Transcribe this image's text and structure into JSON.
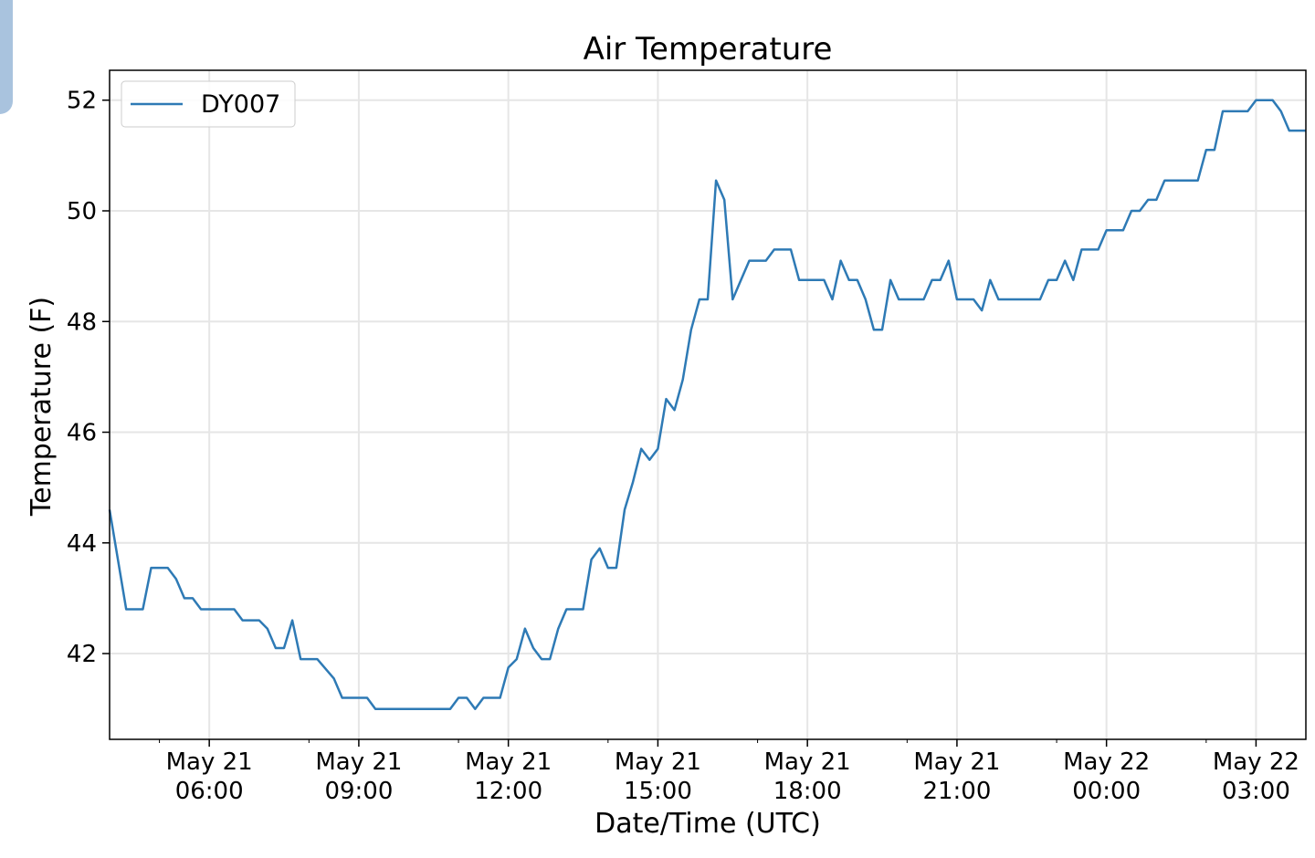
{
  "chart_data": {
    "type": "line",
    "title": "Air Temperature",
    "xlabel": "Date/Time (UTC)",
    "ylabel": "Temperature (F)",
    "x_minutes_range": [
      240,
      1680
    ],
    "ylim": [
      40.45,
      52.54
    ],
    "grid": true,
    "legend_placement": "top-left",
    "y_ticks": [
      42,
      44,
      46,
      48,
      50,
      52
    ],
    "x_ticks": [
      {
        "minutes": 360,
        "line1": "May 21",
        "line2": "06:00"
      },
      {
        "minutes": 540,
        "line1": "May 21",
        "line2": "09:00"
      },
      {
        "minutes": 720,
        "line1": "May 21",
        "line2": "12:00"
      },
      {
        "minutes": 900,
        "line1": "May 21",
        "line2": "15:00"
      },
      {
        "minutes": 1080,
        "line1": "May 21",
        "line2": "18:00"
      },
      {
        "minutes": 1260,
        "line1": "May 21",
        "line2": "21:00"
      },
      {
        "minutes": 1440,
        "line1": "May 22",
        "line2": "00:00"
      },
      {
        "minutes": 1620,
        "line1": "May 22",
        "line2": "03:00"
      }
    ],
    "x_minor_ticks": [
      300,
      480,
      660,
      840,
      1020,
      1200,
      1380,
      1560
    ],
    "series": [
      {
        "name": "DY007",
        "color": "#2e7ab5",
        "x": [
          240,
          260,
          280,
          290,
          310,
          320,
          330,
          340,
          350,
          390,
          400,
          420,
          430,
          440,
          450,
          460,
          470,
          490,
          510,
          520,
          550,
          560,
          650,
          660,
          670,
          680,
          690,
          710,
          720,
          730,
          740,
          750,
          760,
          770,
          780,
          790,
          810,
          820,
          830,
          840,
          850,
          860,
          870,
          880,
          890,
          900,
          910,
          920,
          930,
          940,
          950,
          960,
          970,
          980,
          990,
          1000,
          1010,
          1030,
          1040,
          1060,
          1070,
          1100,
          1110,
          1120,
          1130,
          1140,
          1150,
          1160,
          1170,
          1180,
          1190,
          1220,
          1230,
          1240,
          1250,
          1260,
          1280,
          1290,
          1300,
          1310,
          1360,
          1370,
          1380,
          1390,
          1400,
          1410,
          1430,
          1440,
          1460,
          1470,
          1480,
          1490,
          1500,
          1510,
          1550,
          1560,
          1570,
          1580,
          1610,
          1620,
          1640,
          1650,
          1660,
          1680
        ],
        "values": [
          44.6,
          42.8,
          42.8,
          43.55,
          43.55,
          43.35,
          43.0,
          43.0,
          42.8,
          42.8,
          42.6,
          42.6,
          42.45,
          42.1,
          42.1,
          42.6,
          41.9,
          41.9,
          41.55,
          41.2,
          41.2,
          41.0,
          41.0,
          41.2,
          41.2,
          41.0,
          41.2,
          41.2,
          41.75,
          41.9,
          42.45,
          42.1,
          41.9,
          41.9,
          42.45,
          42.8,
          42.8,
          43.7,
          43.9,
          43.55,
          43.55,
          44.6,
          45.1,
          45.7,
          45.5,
          45.7,
          46.6,
          46.4,
          46.95,
          47.85,
          48.4,
          48.4,
          50.55,
          50.2,
          48.4,
          48.75,
          49.1,
          49.1,
          49.3,
          49.3,
          48.75,
          48.75,
          48.4,
          49.1,
          48.75,
          48.75,
          48.4,
          47.85,
          47.85,
          48.75,
          48.4,
          48.4,
          48.75,
          48.75,
          49.1,
          48.4,
          48.4,
          48.2,
          48.75,
          48.4,
          48.4,
          48.75,
          48.75,
          49.1,
          48.75,
          49.3,
          49.3,
          49.65,
          49.65,
          50.0,
          50.0,
          50.2,
          50.2,
          50.55,
          50.55,
          51.1,
          51.1,
          51.8,
          51.8,
          52.0,
          52.0,
          51.8,
          51.45,
          51.45
        ]
      }
    ]
  }
}
